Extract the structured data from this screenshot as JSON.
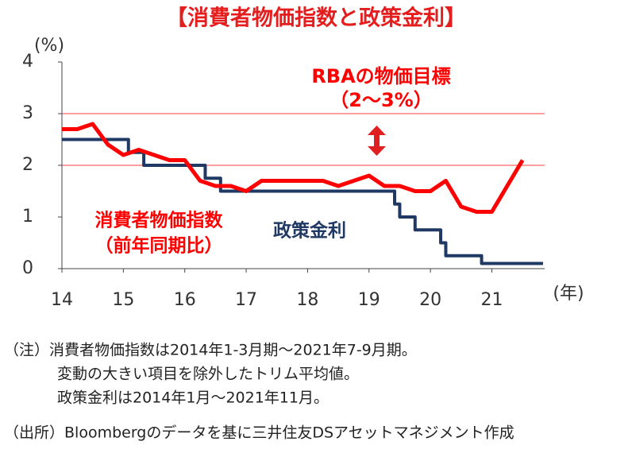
{
  "chart_data": {
    "type": "line",
    "title": "【消費者物価指数と政策金利】",
    "y_unit": "(%)",
    "x_unit": "(年)",
    "xlim": [
      14,
      21.86
    ],
    "xticks": [
      14,
      15,
      16,
      17,
      18,
      19,
      20,
      21
    ],
    "ylim": [
      0,
      4
    ],
    "yticks": [
      0,
      1,
      2,
      3,
      4
    ],
    "grid": false,
    "reference_lines": [
      2,
      3
    ],
    "reference_color": "#ff4040",
    "annotation": [
      "RBAの物価目標",
      "（2～3%）"
    ],
    "series": [
      {
        "name": "消費者物価指数",
        "name_note": "（前年同期比）",
        "color": "#ff0000",
        "x": [
          14,
          14.25,
          14.5,
          14.75,
          15,
          15.25,
          15.5,
          15.75,
          16,
          16.25,
          16.5,
          16.75,
          17,
          17.25,
          17.5,
          17.75,
          18,
          18.25,
          18.5,
          18.75,
          19,
          19.25,
          19.5,
          19.75,
          20,
          20.25,
          20.5,
          20.75,
          21,
          21.25,
          21.5
        ],
        "values": [
          2.7,
          2.7,
          2.8,
          2.4,
          2.2,
          2.3,
          2.2,
          2.1,
          2.1,
          1.7,
          1.6,
          1.6,
          1.5,
          1.7,
          1.7,
          1.7,
          1.7,
          1.7,
          1.6,
          1.7,
          1.8,
          1.6,
          1.6,
          1.5,
          1.5,
          1.7,
          1.2,
          1.1,
          1.1,
          1.6,
          2.1
        ]
      },
      {
        "name": "政策金利",
        "color": "#1f3864",
        "step": "after",
        "x": [
          14,
          15.083,
          15.333,
          16.333,
          16.583,
          19.417,
          19.5,
          19.75,
          20.167,
          20.25,
          20.833,
          21.833
        ],
        "values": [
          2.5,
          2.25,
          2.0,
          1.75,
          1.5,
          1.25,
          1.0,
          0.75,
          0.5,
          0.25,
          0.1,
          0.1
        ]
      }
    ]
  },
  "notes": [
    "（注）消費者物価指数は2014年1-3月期～2021年7-9月期。",
    "変動の大きい項目を除外したトリム平均値。",
    "政策金利は2014年1月～2021年11月。",
    "（出所）Bloombergのデータを基に三井住友DSアセットマネジメント作成"
  ]
}
